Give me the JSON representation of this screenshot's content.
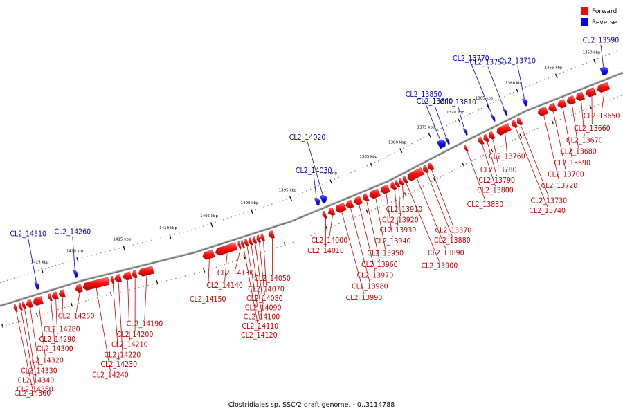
{
  "caption": "Clostridiales sp. SSC/2 draft genome. - 0..3114788",
  "legend": [
    {
      "label": "Forward",
      "color": "#ff0000"
    },
    {
      "label": "Reverse",
      "color": "#0000ff"
    }
  ],
  "colors": {
    "forward": "#ff0000",
    "reverse": "#0000ff",
    "forward_label": "#cc0000",
    "reverse_label": "#0000cc",
    "backbone": "#777777"
  },
  "scale_ticks": [
    {
      "kbp": 1350,
      "label": "1350 kbp"
    },
    {
      "kbp": 1355,
      "label": "1355 kbp"
    },
    {
      "kbp": 1360,
      "label": "1360 kbp"
    },
    {
      "kbp": 1365,
      "label": "1365 kbp"
    },
    {
      "kbp": 1370,
      "label": "1370 kbp"
    },
    {
      "kbp": 1375,
      "label": "1375 kbp"
    },
    {
      "kbp": 1380,
      "label": "1380 kbp"
    },
    {
      "kbp": 1385,
      "label": "1385 kbp"
    },
    {
      "kbp": 1390,
      "label": "1390 kbp"
    },
    {
      "kbp": 1395,
      "label": "1395 kbp"
    },
    {
      "kbp": 1400,
      "label": "1400 kbp"
    },
    {
      "kbp": 1405,
      "label": "1405 kbp"
    },
    {
      "kbp": 1410,
      "label": "1410 kbp"
    },
    {
      "kbp": 1415,
      "label": "1415 kbp"
    },
    {
      "kbp": 1420,
      "label": "1420 kbp"
    },
    {
      "kbp": 1425,
      "label": "1425 kbp"
    }
  ],
  "genes_forward": [
    {
      "name": "CL2_13650",
      "start_kbp": 1349.5,
      "end_kbp": 1351.0
    },
    {
      "name": "CL2_13660",
      "start_kbp": 1351.3,
      "end_kbp": 1352.5
    },
    {
      "name": "CL2_13670",
      "start_kbp": 1352.8,
      "end_kbp": 1353.8
    },
    {
      "name": "CL2_13680",
      "start_kbp": 1354.0,
      "end_kbp": 1355.0
    },
    {
      "name": "CL2_13690",
      "start_kbp": 1355.2,
      "end_kbp": 1356.2
    },
    {
      "name": "CL2_13700",
      "start_kbp": 1356.5,
      "end_kbp": 1357.4
    },
    {
      "name": "CL2_13720",
      "start_kbp": 1357.6,
      "end_kbp": 1358.8
    },
    {
      "name": "CL2_13730",
      "start_kbp": 1361.4,
      "end_kbp": 1362.1
    },
    {
      "name": "CL2_13740",
      "start_kbp": 1362.3,
      "end_kbp": 1363.0
    },
    {
      "name": "CL2_13760",
      "start_kbp": 1363.4,
      "end_kbp": 1365.6
    },
    {
      "name": "CL2_13780",
      "start_kbp": 1366.2,
      "end_kbp": 1367.0
    },
    {
      "name": "CL2_13790",
      "start_kbp": 1367.2,
      "end_kbp": 1367.9
    },
    {
      "name": "CL2_13800",
      "start_kbp": 1368.1,
      "end_kbp": 1368.8
    },
    {
      "name": "CL2_13830",
      "start_kbp": 1370.8,
      "end_kbp": 1371.2
    },
    {
      "name": "CL2_13870",
      "start_kbp": 1376.8,
      "end_kbp": 1377.6
    },
    {
      "name": "CL2_13880",
      "start_kbp": 1377.7,
      "end_kbp": 1378.4
    },
    {
      "name": "CL2_13890",
      "start_kbp": 1378.5,
      "end_kbp": 1381.1
    },
    {
      "name": "CL2_13900",
      "start_kbp": 1381.3,
      "end_kbp": 1381.9
    },
    {
      "name": "CL2_13910",
      "start_kbp": 1382.0,
      "end_kbp": 1382.6
    },
    {
      "name": "CL2_13920",
      "start_kbp": 1382.7,
      "end_kbp": 1383.2
    },
    {
      "name": "CL2_13930",
      "start_kbp": 1383.3,
      "end_kbp": 1384.0
    },
    {
      "name": "CL2_13940",
      "start_kbp": 1384.2,
      "end_kbp": 1385.2
    },
    {
      "name": "CL2_13950",
      "start_kbp": 1385.4,
      "end_kbp": 1386.6
    },
    {
      "name": "CL2_13960",
      "start_kbp": 1386.8,
      "end_kbp": 1387.4
    },
    {
      "name": "CL2_13970",
      "start_kbp": 1387.6,
      "end_kbp": 1388.5
    },
    {
      "name": "CL2_13980",
      "start_kbp": 1388.7,
      "end_kbp": 1389.5
    },
    {
      "name": "CL2_13990",
      "start_kbp": 1389.6,
      "end_kbp": 1390.8
    },
    {
      "name": "CL2_14000",
      "start_kbp": 1391.0,
      "end_kbp": 1391.7
    },
    {
      "name": "CL2_14010",
      "start_kbp": 1392.0,
      "end_kbp": 1392.4
    },
    {
      "name": "CL2_14050",
      "start_kbp": 1398.4,
      "end_kbp": 1399.0
    },
    {
      "name": "CL2_14070",
      "start_kbp": 1399.6,
      "end_kbp": 1400.0
    },
    {
      "name": "CL2_14080",
      "start_kbp": 1400.1,
      "end_kbp": 1400.5
    },
    {
      "name": "CL2_14090",
      "start_kbp": 1400.6,
      "end_kbp": 1401.0
    },
    {
      "name": "CL2_14100",
      "start_kbp": 1401.1,
      "end_kbp": 1401.5
    },
    {
      "name": "CL2_14110",
      "start_kbp": 1401.6,
      "end_kbp": 1402.0
    },
    {
      "name": "CL2_14120",
      "start_kbp": 1402.1,
      "end_kbp": 1402.4
    },
    {
      "name": "CL2_14130",
      "start_kbp": 1402.5,
      "end_kbp": 1402.8
    },
    {
      "name": "CL2_14140",
      "start_kbp": 1403.0,
      "end_kbp": 1405.6
    },
    {
      "name": "CL2_14150",
      "start_kbp": 1405.8,
      "end_kbp": 1407.2
    },
    {
      "name": "CL2_14190",
      "start_kbp": 1412.6,
      "end_kbp": 1414.2
    },
    {
      "name": "CL2_14200",
      "start_kbp": 1414.4,
      "end_kbp": 1414.9
    },
    {
      "name": "CL2_14210",
      "start_kbp": 1415.0,
      "end_kbp": 1415.9
    },
    {
      "name": "CL2_14220",
      "start_kbp": 1416.1,
      "end_kbp": 1416.8
    },
    {
      "name": "CL2_14230",
      "start_kbp": 1416.9,
      "end_kbp": 1417.2
    },
    {
      "name": "CL2_14240",
      "start_kbp": 1417.4,
      "end_kbp": 1420.3
    },
    {
      "name": "CL2_14250",
      "start_kbp": 1420.5,
      "end_kbp": 1421.4
    },
    {
      "name": "CL2_14280",
      "start_kbp": 1423.0,
      "end_kbp": 1423.8
    },
    {
      "name": "CL2_14290",
      "start_kbp": 1424.0,
      "end_kbp": 1424.8
    },
    {
      "name": "CL2_14300",
      "start_kbp": 1424.9,
      "end_kbp": 1425.3
    },
    {
      "name": "CL2_14320",
      "start_kbp": 1426.2,
      "end_kbp": 1427.5
    },
    {
      "name": "CL2_14330",
      "start_kbp": 1427.7,
      "end_kbp": 1428.5
    },
    {
      "name": "CL2_14340",
      "start_kbp": 1428.7,
      "end_kbp": 1429.1
    },
    {
      "name": "CL2_14350",
      "start_kbp": 1429.2,
      "end_kbp": 1429.6
    },
    {
      "name": "CL2_14360",
      "start_kbp": 1429.9,
      "end_kbp": 1430.3
    }
  ],
  "genes_reverse": [
    {
      "name": "CL2_13590",
      "start_kbp": 1348.8,
      "end_kbp": 1349.7
    },
    {
      "name": "CL2_13710",
      "start_kbp": 1359.4,
      "end_kbp": 1359.9
    },
    {
      "name": "CL2_13750",
      "start_kbp": 1362.7,
      "end_kbp": 1363.1
    },
    {
      "name": "CL2_13770",
      "start_kbp": 1364.8,
      "end_kbp": 1365.2
    },
    {
      "name": "CL2_13810",
      "start_kbp": 1369.6,
      "end_kbp": 1370.0
    },
    {
      "name": "CL2_13840",
      "start_kbp": 1372.7,
      "end_kbp": 1373.1
    },
    {
      "name": "CL2_13850",
      "start_kbp": 1373.3,
      "end_kbp": 1374.5
    },
    {
      "name": "CL2_14020",
      "start_kbp": 1391.1,
      "end_kbp": 1391.8
    },
    {
      "name": "CL2_14030",
      "start_kbp": 1392.0,
      "end_kbp": 1392.5
    },
    {
      "name": "CL2_14260",
      "start_kbp": 1420.4,
      "end_kbp": 1420.9
    },
    {
      "name": "CL2_14310",
      "start_kbp": 1426.0,
      "end_kbp": 1426.5
    }
  ]
}
